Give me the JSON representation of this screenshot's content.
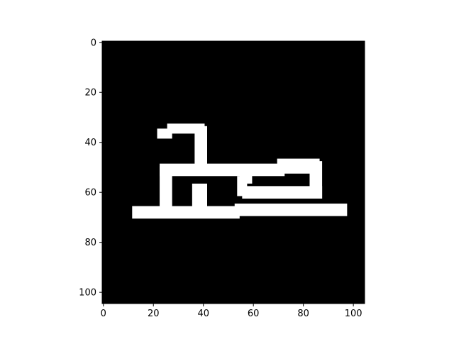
{
  "chart_data": {
    "type": "heatmap",
    "title": "",
    "xlabel": "",
    "ylabel": "",
    "colormap": "binary (0 = black, 1 = white)",
    "xlim": [
      -0.5,
      104.5
    ],
    "ylim": [
      104.5,
      -0.5
    ],
    "y_inverted": true,
    "xticks": [
      0,
      20,
      40,
      60,
      80,
      100
    ],
    "yticks": [
      0,
      20,
      40,
      60,
      80,
      100
    ],
    "xtick_labels": [
      "0",
      "20",
      "40",
      "60",
      "80",
      "100"
    ],
    "ytick_labels": [
      "0",
      "20",
      "40",
      "60",
      "80",
      "100"
    ],
    "grid": false,
    "legend": "none",
    "background_value": 0,
    "foreground_value": 1,
    "white_regions": [
      {
        "x0": 22,
        "x1": 27,
        "y0": 35,
        "y1": 38
      },
      {
        "x0": 26,
        "x1": 40,
        "y0": 33,
        "y1": 36
      },
      {
        "x0": 37,
        "x1": 41,
        "y0": 34,
        "y1": 52
      },
      {
        "x0": 23,
        "x1": 72,
        "y0": 49,
        "y1": 53
      },
      {
        "x0": 70,
        "x1": 86,
        "y0": 47,
        "y1": 52
      },
      {
        "x0": 83,
        "x1": 87,
        "y0": 48,
        "y1": 62
      },
      {
        "x0": 56,
        "x1": 87,
        "y0": 58,
        "y1": 62
      },
      {
        "x0": 54,
        "x1": 57,
        "y0": 54,
        "y1": 61
      },
      {
        "x0": 55,
        "x1": 59,
        "y0": 52,
        "y1": 56
      },
      {
        "x0": 23,
        "x1": 27,
        "y0": 50,
        "y1": 68
      },
      {
        "x0": 36,
        "x1": 41,
        "y0": 57,
        "y1": 68
      },
      {
        "x0": 12,
        "x1": 54,
        "y0": 66,
        "y1": 70
      },
      {
        "x0": 53,
        "x1": 97,
        "y0": 65,
        "y1": 69
      }
    ]
  }
}
